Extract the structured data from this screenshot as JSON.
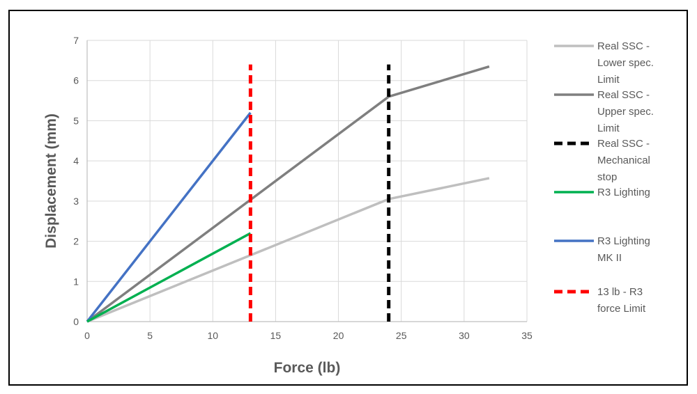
{
  "chart_data": {
    "type": "line",
    "title": "",
    "xlabel": "Force (lb)",
    "ylabel": "Displacement (mm)",
    "xlim": [
      0,
      35
    ],
    "ylim": [
      0,
      7
    ],
    "xticks": [
      0,
      5,
      10,
      15,
      20,
      25,
      30,
      35
    ],
    "yticks": [
      0,
      1,
      2,
      3,
      4,
      5,
      6,
      7
    ],
    "grid": true,
    "legend_position": "right",
    "series": [
      {
        "name": "Real SSC - Lower spec. Limit",
        "color": "#bfbfbf",
        "style": "solid",
        "x": [
          0,
          24,
          32
        ],
        "y": [
          0,
          3.05,
          3.57
        ]
      },
      {
        "name": "Real SSC - Upper spec. Limit",
        "color": "#7f7f7f",
        "style": "solid",
        "x": [
          0,
          24,
          32
        ],
        "y": [
          0,
          5.6,
          6.35
        ]
      },
      {
        "name": "Real SSC - Mechanical stop",
        "color": "#000000",
        "style": "dashed",
        "x": [
          24,
          24
        ],
        "y": [
          0,
          6.4
        ]
      },
      {
        "name": "R3 Lighting",
        "color": "#00b050",
        "style": "solid",
        "x": [
          0,
          13
        ],
        "y": [
          0,
          2.2
        ]
      },
      {
        "name": "R3 Lighting MK II",
        "color": "#4472c4",
        "style": "solid",
        "x": [
          0,
          13
        ],
        "y": [
          0,
          5.2
        ]
      },
      {
        "name": "13 lb - R3 force Limit",
        "color": "#ff0000",
        "style": "dashed",
        "x": [
          13,
          13
        ],
        "y": [
          0,
          6.4
        ]
      }
    ],
    "legend_lines": [
      [
        "Real SSC -",
        "Lower spec.",
        "Limit"
      ],
      [
        "Real SSC -",
        "Upper spec.",
        "Limit"
      ],
      [
        "Real SSC -",
        "Mechanical",
        "stop"
      ],
      [
        "R3 Lighting"
      ],
      [
        "R3 Lighting",
        "MK II"
      ],
      [
        "13 lb - R3",
        "force Limit"
      ]
    ]
  }
}
